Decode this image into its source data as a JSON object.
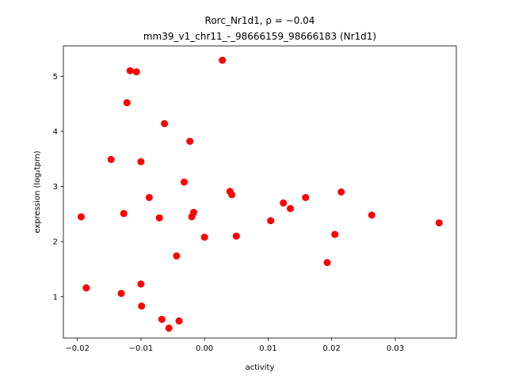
{
  "chart_data": {
    "type": "scatter",
    "title_line1": "Rorc_Nr1d1, ρ = −0.04",
    "title_line2": "mm39_v1_chr11_-_98666159_98666183 (Nr1d1)",
    "xlabel": "activity",
    "ylabel": "expression (log₂tpm)",
    "xlim": [
      -0.0222,
      0.0396
    ],
    "ylim": [
      0.25,
      5.55
    ],
    "x_ticks": [
      {
        "value": -0.02,
        "label": "−0.02"
      },
      {
        "value": -0.01,
        "label": "−0.01"
      },
      {
        "value": 0.0,
        "label": "0.00"
      },
      {
        "value": 0.01,
        "label": "0.01"
      },
      {
        "value": 0.02,
        "label": "0.02"
      },
      {
        "value": 0.03,
        "label": "0.03"
      }
    ],
    "y_ticks": [
      {
        "value": 1,
        "label": "1"
      },
      {
        "value": 2,
        "label": "2"
      },
      {
        "value": 3,
        "label": "3"
      },
      {
        "value": 4,
        "label": "4"
      },
      {
        "value": 5,
        "label": "5"
      }
    ],
    "grid": false,
    "marker_color": "#ff0000",
    "points": [
      {
        "x": -0.0194,
        "y": 2.45
      },
      {
        "x": -0.0186,
        "y": 1.16
      },
      {
        "x": -0.0147,
        "y": 3.49
      },
      {
        "x": -0.0131,
        "y": 1.06
      },
      {
        "x": -0.0127,
        "y": 2.51
      },
      {
        "x": -0.0122,
        "y": 4.52
      },
      {
        "x": -0.0117,
        "y": 5.1
      },
      {
        "x": -0.0107,
        "y": 5.08
      },
      {
        "x": -0.01,
        "y": 3.45
      },
      {
        "x": -0.01,
        "y": 1.23
      },
      {
        "x": -0.0099,
        "y": 0.83
      },
      {
        "x": -0.0087,
        "y": 2.8
      },
      {
        "x": -0.0071,
        "y": 2.43
      },
      {
        "x": -0.0067,
        "y": 0.59
      },
      {
        "x": -0.0063,
        "y": 4.14
      },
      {
        "x": -0.0056,
        "y": 0.43
      },
      {
        "x": -0.0044,
        "y": 1.74
      },
      {
        "x": -0.004,
        "y": 0.56
      },
      {
        "x": -0.0032,
        "y": 3.08
      },
      {
        "x": -0.0023,
        "y": 3.82
      },
      {
        "x": -0.002,
        "y": 2.45
      },
      {
        "x": -0.0017,
        "y": 2.53
      },
      {
        "x": 0.0,
        "y": 2.08
      },
      {
        "x": 0.0028,
        "y": 5.29
      },
      {
        "x": 0.004,
        "y": 2.91
      },
      {
        "x": 0.0043,
        "y": 2.85
      },
      {
        "x": 0.005,
        "y": 2.1
      },
      {
        "x": 0.0104,
        "y": 2.38
      },
      {
        "x": 0.0124,
        "y": 2.7
      },
      {
        "x": 0.0135,
        "y": 2.6
      },
      {
        "x": 0.0159,
        "y": 2.8
      },
      {
        "x": 0.0193,
        "y": 1.62
      },
      {
        "x": 0.0205,
        "y": 2.13
      },
      {
        "x": 0.0215,
        "y": 2.9
      },
      {
        "x": 0.0263,
        "y": 2.48
      },
      {
        "x": 0.0369,
        "y": 2.34
      }
    ]
  }
}
